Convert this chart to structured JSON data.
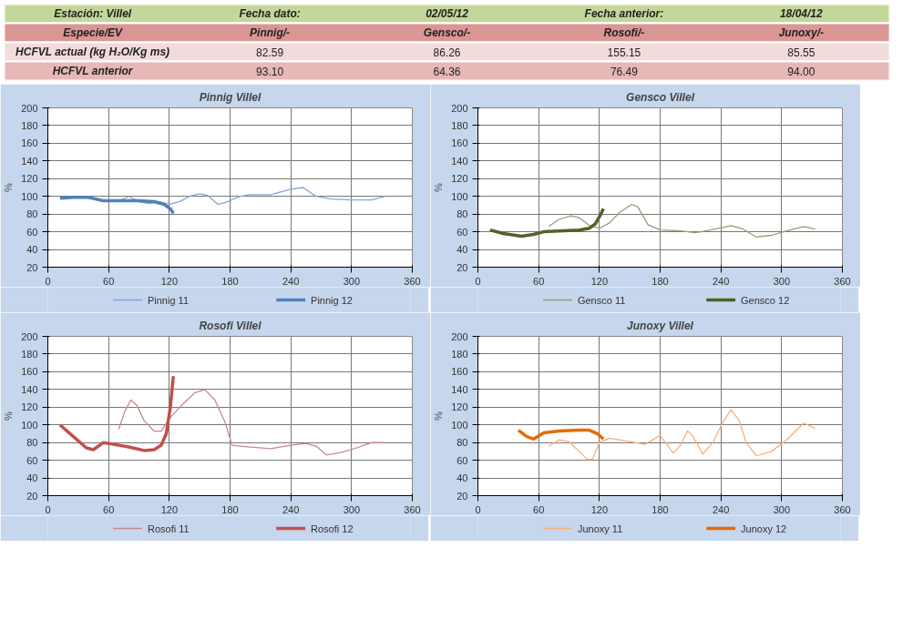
{
  "chart_data": [
    {
      "type": "other",
      "annotations": [
        "Estación: Villel",
        "Fecha dato:",
        "02/05/12",
        "Fecha anterior:",
        "18/04/12",
        "Especie/EV",
        "Pinnig/-",
        "Gensco/-",
        "Rosofi/-",
        "Junoxy/-",
        "HCFVL actual (kg H₂O/Kg ms)",
        "82.59",
        "86.26",
        "155.15",
        "85.55",
        "HCFVL anterior",
        "93.10",
        "64.36",
        "76.49",
        "94.00"
      ]
    },
    {
      "type": "line",
      "title": "Pinnig Villel",
      "ylabel": "%",
      "xlim": [
        0,
        360
      ],
      "xticks": [
        0,
        60,
        120,
        180,
        240,
        300,
        360
      ],
      "ylim": [
        20,
        200
      ],
      "yticks": [
        20,
        40,
        60,
        80,
        100,
        120,
        140,
        160,
        180,
        200
      ],
      "grid": true,
      "legend": "bottom",
      "series": [
        {
          "name": "Pinnig 11",
          "color": "#7ea6d8",
          "x": [
            70,
            80,
            90,
            100,
            110,
            120,
            130,
            140,
            150,
            158,
            168,
            175,
            190,
            200,
            220,
            240,
            252,
            265,
            280,
            300,
            320,
            333
          ],
          "values": [
            95,
            100,
            94,
            92,
            94,
            91,
            94,
            100,
            103,
            101,
            91,
            93,
            100,
            102,
            102,
            108,
            110,
            100,
            97,
            96,
            96,
            100
          ]
        },
        {
          "name": "Pinnig 12",
          "color": "#4f81bd",
          "x": [
            12,
            25,
            40,
            55,
            70,
            90,
            105,
            115,
            121,
            124
          ],
          "values": [
            98,
            99,
            99,
            95,
            95,
            95,
            94,
            91,
            86,
            81
          ]
        }
      ]
    },
    {
      "type": "line",
      "title": "Gensco Villel",
      "ylabel": "%",
      "xlim": [
        0,
        360
      ],
      "xticks": [
        0,
        60,
        120,
        180,
        240,
        300,
        360
      ],
      "ylim": [
        20,
        200
      ],
      "yticks": [
        20,
        40,
        60,
        80,
        100,
        120,
        140,
        160,
        180,
        200
      ],
      "grid": true,
      "legend": "bottom",
      "series": [
        {
          "name": "Gensco 11",
          "color": "#8fa07a",
          "x": [
            70,
            80,
            92,
            100,
            110,
            120,
            130,
            140,
            152,
            158,
            168,
            180,
            200,
            215,
            230,
            250,
            262,
            275,
            290,
            305,
            322,
            333
          ],
          "values": [
            66,
            74,
            78,
            76,
            67,
            64,
            70,
            82,
            91,
            88,
            68,
            62,
            61,
            59,
            62,
            67,
            63,
            54,
            56,
            61,
            66,
            63
          ]
        },
        {
          "name": "Gensco 12",
          "color": "#4f6228",
          "x": [
            12,
            25,
            43,
            55,
            65,
            80,
            100,
            110,
            116,
            121,
            124
          ],
          "values": [
            62,
            58,
            55,
            57,
            60,
            61,
            62,
            64,
            69,
            79,
            86
          ]
        }
      ]
    },
    {
      "type": "line",
      "title": "Rosofi Villel",
      "ylabel": "%",
      "xlim": [
        0,
        360
      ],
      "xticks": [
        0,
        60,
        120,
        180,
        240,
        300,
        360
      ],
      "ylim": [
        20,
        200
      ],
      "yticks": [
        20,
        40,
        60,
        80,
        100,
        120,
        140,
        160,
        180,
        200
      ],
      "grid": true,
      "legend": "bottom",
      "series": [
        {
          "name": "Rosofi 11",
          "color": "#c9878a",
          "x": [
            70,
            76,
            82,
            88,
            95,
            105,
            112,
            120,
            132,
            145,
            155,
            165,
            175,
            182,
            190,
            200,
            220,
            240,
            255,
            265,
            275,
            290,
            305,
            320,
            333
          ],
          "values": [
            95,
            115,
            128,
            122,
            105,
            93,
            93,
            107,
            122,
            136,
            140,
            128,
            103,
            77,
            76,
            75,
            73,
            77,
            79,
            76,
            66,
            69,
            74,
            80,
            80
          ]
        },
        {
          "name": "Rosofi 12",
          "color": "#c0504d",
          "x": [
            12,
            25,
            38,
            45,
            55,
            65,
            80,
            95,
            105,
            112,
            117,
            121,
            124
          ],
          "values": [
            100,
            87,
            74,
            72,
            80,
            78,
            75,
            71,
            72,
            77,
            90,
            120,
            155
          ]
        }
      ]
    },
    {
      "type": "line",
      "title": "Junoxy Villel",
      "ylabel": "%",
      "xlim": [
        0,
        360
      ],
      "xticks": [
        0,
        60,
        120,
        180,
        240,
        300,
        360
      ],
      "ylim": [
        20,
        200
      ],
      "yticks": [
        20,
        40,
        60,
        80,
        100,
        120,
        140,
        160,
        180,
        200
      ],
      "grid": true,
      "legend": "bottom",
      "series": [
        {
          "name": "Junoxy 11",
          "color": "#f5b07a",
          "x": [
            70,
            80,
            90,
            100,
            108,
            113,
            120,
            130,
            150,
            165,
            180,
            193,
            200,
            207,
            212,
            222,
            232,
            242,
            250,
            258,
            265,
            275,
            290,
            305,
            322,
            333
          ],
          "values": [
            76,
            83,
            81,
            70,
            61,
            61,
            80,
            85,
            81,
            78,
            88,
            68,
            77,
            93,
            88,
            67,
            80,
            103,
            117,
            105,
            80,
            65,
            70,
            83,
            102,
            96
          ]
        },
        {
          "name": "Junoxy 12",
          "color": "#e36c09",
          "x": [
            40,
            48,
            55,
            65,
            80,
            100,
            110,
            118,
            124
          ],
          "values": [
            94,
            87,
            84,
            91,
            93,
            94,
            94,
            90,
            84
          ]
        }
      ]
    }
  ]
}
